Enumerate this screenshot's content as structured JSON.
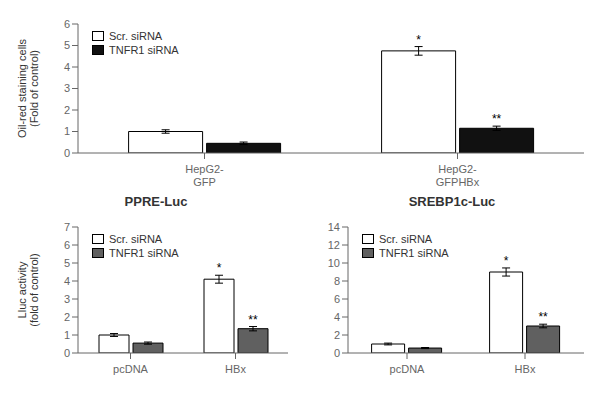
{
  "chart_data": [
    {
      "type": "bar",
      "categories": [
        "HepG2-\nGFP",
        "HepG2-\nGFPHBx"
      ],
      "ylabel": "Oil-red staining cells\n(Fold of control)",
      "ylim": [
        0,
        6
      ],
      "yticks": [
        0,
        1,
        2,
        3,
        4,
        5,
        6
      ],
      "legend": "upper left",
      "grid": false,
      "series": [
        {
          "name": "Scr. siRNA",
          "color": "#ffffff",
          "values": [
            1.0,
            4.75
          ],
          "errors": [
            0.08,
            0.2
          ],
          "annotations": [
            null,
            "*"
          ]
        },
        {
          "name": "TNFR1 siRNA",
          "color": "#111111",
          "values": [
            0.45,
            1.15
          ],
          "errors": [
            0.06,
            0.1
          ],
          "annotations": [
            null,
            "**"
          ]
        }
      ]
    },
    {
      "type": "bar",
      "title": "PPRE-Luc",
      "categories": [
        "pcDNA",
        "HBx"
      ],
      "ylabel": "Lluc activity\n(fold of control)",
      "ylim": [
        0,
        7
      ],
      "yticks": [
        0,
        1,
        2,
        3,
        4,
        5,
        6,
        7
      ],
      "legend": "upper left",
      "grid": false,
      "series": [
        {
          "name": "Scr. siRNA",
          "color": "#ffffff",
          "values": [
            1.0,
            4.1
          ],
          "errors": [
            0.08,
            0.22
          ],
          "annotations": [
            null,
            "*"
          ]
        },
        {
          "name": "TNFR1 siRNA",
          "color": "#606060",
          "values": [
            0.55,
            1.35
          ],
          "errors": [
            0.06,
            0.12
          ],
          "annotations": [
            null,
            "**"
          ]
        }
      ]
    },
    {
      "type": "bar",
      "title": "SREBP1c-Luc",
      "categories": [
        "pcDNA",
        "HBx"
      ],
      "ylim": [
        0,
        14
      ],
      "yticks": [
        0,
        2,
        4,
        6,
        8,
        10,
        12,
        14
      ],
      "legend": "upper left",
      "grid": false,
      "series": [
        {
          "name": "Scr. siRNA",
          "color": "#ffffff",
          "values": [
            1.0,
            9.0
          ],
          "errors": [
            0.1,
            0.45
          ],
          "annotations": [
            null,
            "*"
          ]
        },
        {
          "name": "TNFR1 siRNA",
          "color": "#606060",
          "values": [
            0.55,
            3.0
          ],
          "errors": [
            0.06,
            0.2
          ],
          "annotations": [
            null,
            "**"
          ]
        }
      ]
    }
  ]
}
